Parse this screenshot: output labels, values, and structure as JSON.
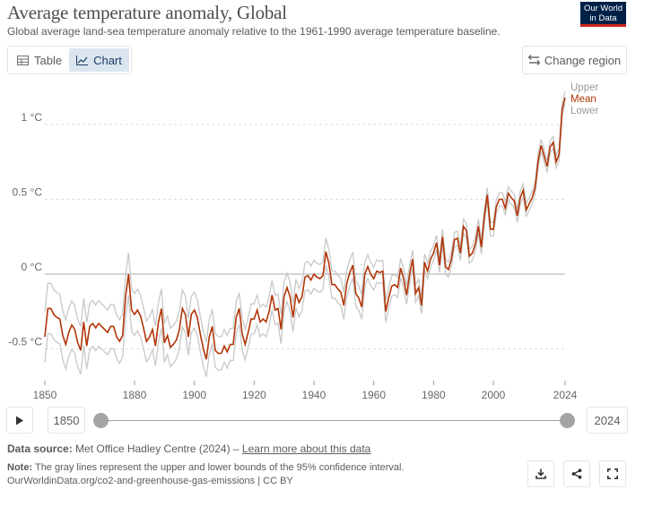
{
  "header": {
    "title": "Average temperature anomaly, Global",
    "subtitle": "Global average land-sea temperature anomaly relative to the 1961-1990 average temperature baseline.",
    "logo_line1": "Our World",
    "logo_line2": "in Data"
  },
  "tabs": [
    {
      "label": "Table",
      "icon": "table-icon",
      "active": false
    },
    {
      "label": "Chart",
      "icon": "line-chart-icon",
      "active": true
    }
  ],
  "change_region_label": "Change region",
  "chart_data": {
    "type": "line",
    "title": "",
    "xlabel": "",
    "ylabel": "",
    "xlim": [
      1850,
      2024
    ],
    "ylim": [
      -0.72,
      1.28
    ],
    "y_ticks": [
      {
        "value": 1.0,
        "label": "1 °C"
      },
      {
        "value": 0.5,
        "label": "0.5 °C"
      },
      {
        "value": 0.0,
        "label": "0 °C"
      },
      {
        "value": -0.5,
        "label": "-0.5 °C"
      }
    ],
    "x_ticks": [
      1850,
      1880,
      1900,
      1920,
      1940,
      1960,
      1980,
      2000,
      2024
    ],
    "grid": "horizontal-dotted",
    "legend": "right-end-labels",
    "colors": {
      "mean": "#b13507",
      "bounds": "#c8c8c8"
    },
    "years_start": 1850,
    "years_end": 2024,
    "mean_anchors": [
      [
        1850,
        -0.42
      ],
      [
        1851,
        -0.23
      ],
      [
        1852,
        -0.23
      ],
      [
        1853,
        -0.27
      ],
      [
        1854,
        -0.29
      ],
      [
        1855,
        -0.3
      ],
      [
        1856,
        -0.41
      ],
      [
        1857,
        -0.47
      ],
      [
        1858,
        -0.39
      ],
      [
        1859,
        -0.34
      ],
      [
        1860,
        -0.37
      ],
      [
        1861,
        -0.46
      ],
      [
        1862,
        -0.51
      ],
      [
        1863,
        -0.32
      ],
      [
        1864,
        -0.48
      ],
      [
        1865,
        -0.35
      ],
      [
        1866,
        -0.33
      ],
      [
        1867,
        -0.36
      ],
      [
        1868,
        -0.33
      ],
      [
        1869,
        -0.35
      ],
      [
        1870,
        -0.37
      ],
      [
        1871,
        -0.39
      ],
      [
        1872,
        -0.35
      ],
      [
        1873,
        -0.35
      ],
      [
        1874,
        -0.42
      ],
      [
        1875,
        -0.45
      ],
      [
        1876,
        -0.41
      ],
      [
        1877,
        -0.15
      ],
      [
        1878,
        0.0
      ],
      [
        1879,
        -0.24
      ],
      [
        1880,
        -0.27
      ],
      [
        1881,
        -0.24
      ],
      [
        1882,
        -0.28
      ],
      [
        1883,
        -0.36
      ],
      [
        1884,
        -0.45
      ],
      [
        1885,
        -0.42
      ],
      [
        1886,
        -0.37
      ],
      [
        1887,
        -0.48
      ],
      [
        1888,
        -0.32
      ],
      [
        1889,
        -0.23
      ],
      [
        1890,
        -0.46
      ],
      [
        1891,
        -0.41
      ],
      [
        1892,
        -0.49
      ],
      [
        1893,
        -0.47
      ],
      [
        1894,
        -0.44
      ],
      [
        1895,
        -0.37
      ],
      [
        1896,
        -0.23
      ],
      [
        1897,
        -0.27
      ],
      [
        1898,
        -0.42
      ],
      [
        1899,
        -0.27
      ],
      [
        1900,
        -0.24
      ],
      [
        1901,
        -0.29
      ],
      [
        1902,
        -0.4
      ],
      [
        1903,
        -0.5
      ],
      [
        1904,
        -0.57
      ],
      [
        1905,
        -0.42
      ],
      [
        1906,
        -0.35
      ],
      [
        1907,
        -0.51
      ],
      [
        1908,
        -0.53
      ],
      [
        1909,
        -0.53
      ],
      [
        1910,
        -0.48
      ],
      [
        1911,
        -0.52
      ],
      [
        1912,
        -0.47
      ],
      [
        1913,
        -0.47
      ],
      [
        1914,
        -0.29
      ],
      [
        1915,
        -0.23
      ],
      [
        1916,
        -0.4
      ],
      [
        1917,
        -0.47
      ],
      [
        1918,
        -0.39
      ],
      [
        1919,
        -0.3
      ],
      [
        1920,
        -0.3
      ],
      [
        1921,
        -0.24
      ],
      [
        1922,
        -0.32
      ],
      [
        1923,
        -0.3
      ],
      [
        1924,
        -0.32
      ],
      [
        1925,
        -0.25
      ],
      [
        1926,
        -0.14
      ],
      [
        1927,
        -0.24
      ],
      [
        1928,
        -0.23
      ],
      [
        1929,
        -0.37
      ],
      [
        1930,
        -0.15
      ],
      [
        1931,
        -0.09
      ],
      [
        1932,
        -0.15
      ],
      [
        1933,
        -0.29
      ],
      [
        1934,
        -0.13
      ],
      [
        1935,
        -0.19
      ],
      [
        1936,
        -0.15
      ],
      [
        1937,
        -0.02
      ],
      [
        1938,
        -0.01
      ],
      [
        1939,
        -0.04
      ],
      [
        1940,
        0.0
      ],
      [
        1941,
        -0.02
      ],
      [
        1942,
        -0.03
      ],
      [
        1943,
        -0.01
      ],
      [
        1944,
        0.15
      ],
      [
        1945,
        0.07
      ],
      [
        1946,
        -0.07
      ],
      [
        1947,
        -0.07
      ],
      [
        1948,
        -0.1
      ],
      [
        1949,
        -0.12
      ],
      [
        1950,
        -0.21
      ],
      [
        1951,
        -0.06
      ],
      [
        1952,
        0.01
      ],
      [
        1953,
        0.06
      ],
      [
        1954,
        -0.13
      ],
      [
        1955,
        -0.16
      ],
      [
        1956,
        -0.22
      ],
      [
        1957,
        0.0
      ],
      [
        1958,
        0.05
      ],
      [
        1959,
        0.0
      ],
      [
        1960,
        -0.03
      ],
      [
        1961,
        0.02
      ],
      [
        1962,
        0.01
      ],
      [
        1963,
        0.02
      ],
      [
        1964,
        -0.25
      ],
      [
        1965,
        -0.16
      ],
      [
        1966,
        -0.08
      ],
      [
        1967,
        -0.07
      ],
      [
        1968,
        -0.09
      ],
      [
        1969,
        0.04
      ],
      [
        1970,
        -0.03
      ],
      [
        1971,
        -0.14
      ],
      [
        1972,
        0.0
      ],
      [
        1973,
        0.1
      ],
      [
        1974,
        -0.13
      ],
      [
        1975,
        -0.09
      ],
      [
        1976,
        -0.21
      ],
      [
        1977,
        0.08
      ],
      [
        1978,
        0.02
      ],
      [
        1979,
        0.1
      ],
      [
        1980,
        0.14
      ],
      [
        1981,
        0.21
      ],
      [
        1982,
        0.06
      ],
      [
        1983,
        0.25
      ],
      [
        1984,
        0.05
      ],
      [
        1985,
        0.03
      ],
      [
        1986,
        0.1
      ],
      [
        1987,
        0.23
      ],
      [
        1988,
        0.24
      ],
      [
        1989,
        0.14
      ],
      [
        1990,
        0.32
      ],
      [
        1991,
        0.29
      ],
      [
        1992,
        0.12
      ],
      [
        1993,
        0.14
      ],
      [
        1994,
        0.2
      ],
      [
        1995,
        0.32
      ],
      [
        1996,
        0.18
      ],
      [
        1997,
        0.39
      ],
      [
        1998,
        0.53
      ],
      [
        1999,
        0.3
      ],
      [
        2000,
        0.3
      ],
      [
        2001,
        0.45
      ],
      [
        2002,
        0.5
      ],
      [
        2003,
        0.5
      ],
      [
        2004,
        0.44
      ],
      [
        2005,
        0.54
      ],
      [
        2006,
        0.51
      ],
      [
        2007,
        0.49
      ],
      [
        2008,
        0.39
      ],
      [
        2009,
        0.51
      ],
      [
        2010,
        0.56
      ],
      [
        2011,
        0.43
      ],
      [
        2012,
        0.47
      ],
      [
        2013,
        0.51
      ],
      [
        2014,
        0.58
      ],
      [
        2015,
        0.76
      ],
      [
        2016,
        0.86
      ],
      [
        2017,
        0.79
      ],
      [
        2018,
        0.72
      ],
      [
        2019,
        0.85
      ],
      [
        2020,
        0.88
      ],
      [
        2021,
        0.75
      ],
      [
        2022,
        0.8
      ],
      [
        2023,
        1.1
      ],
      [
        2024,
        1.18
      ]
    ],
    "bound_anchors": [
      {
        "year": 1850,
        "half_width": 0.17
      },
      {
        "year": 1880,
        "half_width": 0.14
      },
      {
        "year": 1920,
        "half_width": 0.1
      },
      {
        "year": 1950,
        "half_width": 0.09
      },
      {
        "year": 1980,
        "half_width": 0.05
      },
      {
        "year": 2024,
        "half_width": 0.04
      }
    ],
    "end_labels": [
      "Upper",
      "Mean",
      "Lower"
    ]
  },
  "timeline": {
    "start_label": "1850",
    "end_label": "2024",
    "play_icon": "play-icon"
  },
  "footer": {
    "source_label": "Data source:",
    "source_text": "Met Office Hadley Centre (2024) –",
    "learn_more": "Learn more about this data",
    "note_label": "Note:",
    "note_text": "The gray lines represent the upper and lower bounds of the 95% confidence interval.",
    "url": "OurWorldinData.org/co2-and-greenhouse-gas-emissions | CC BY"
  },
  "footer_buttons": [
    "download-icon",
    "share-icon",
    "fullscreen-icon"
  ]
}
